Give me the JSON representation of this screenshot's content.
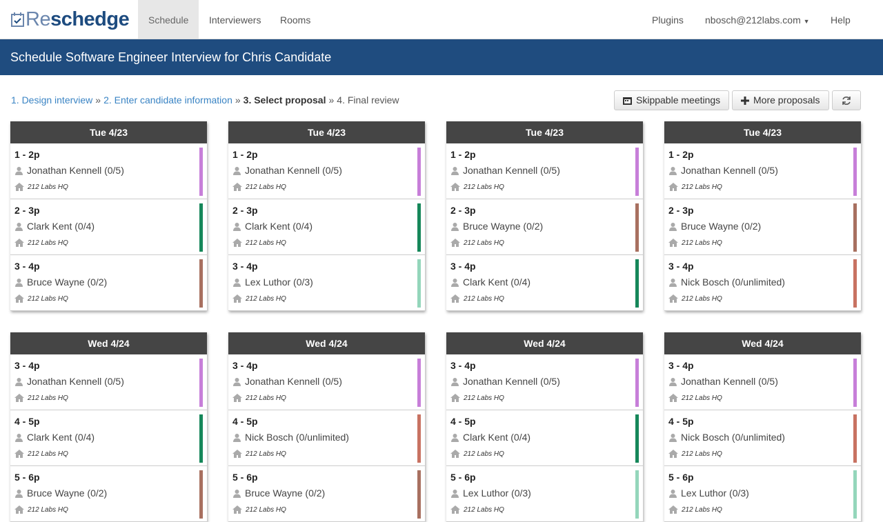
{
  "navbar": {
    "logo_parts": [
      "Re",
      "schedge"
    ],
    "left_items": [
      "Schedule",
      "Interviewers",
      "Rooms"
    ],
    "right_items": [
      "Plugins",
      "nbosch@212labs.com",
      "Help"
    ]
  },
  "header": {
    "title": "Schedule Software Engineer Interview for Chris Candidate"
  },
  "breadcrumb": {
    "separator": "»",
    "steps": [
      "1. Design interview",
      "2. Enter candidate information",
      "3. Select proposal",
      "4. Final review"
    ]
  },
  "toolbar": {
    "buttons": [
      "Skippable meetings",
      "More proposals"
    ]
  },
  "proposals": [
    {
      "date": "Tue 4/23",
      "slots": [
        {
          "time": "1 - 2p",
          "interviewer": "Jonathan Kennell (0/5)",
          "room": "212 Labs HQ",
          "color": "#c77fd9"
        },
        {
          "time": "2 - 3p",
          "interviewer": "Clark Kent (0/4)",
          "room": "212 Labs HQ",
          "color": "#16875a"
        },
        {
          "time": "3 - 4p",
          "interviewer": "Bruce Wayne (0/2)",
          "room": "212 Labs HQ",
          "color": "#a87060"
        }
      ]
    },
    {
      "date": "Tue 4/23",
      "slots": [
        {
          "time": "1 - 2p",
          "interviewer": "Jonathan Kennell (0/5)",
          "room": "212 Labs HQ",
          "color": "#c77fd9"
        },
        {
          "time": "2 - 3p",
          "interviewer": "Clark Kent (0/4)",
          "room": "212 Labs HQ",
          "color": "#16875a"
        },
        {
          "time": "3 - 4p",
          "interviewer": "Lex Luthor (0/3)",
          "room": "212 Labs HQ",
          "color": "#94d6bb"
        }
      ]
    },
    {
      "date": "Tue 4/23",
      "slots": [
        {
          "time": "1 - 2p",
          "interviewer": "Jonathan Kennell (0/5)",
          "room": "212 Labs HQ",
          "color": "#c77fd9"
        },
        {
          "time": "2 - 3p",
          "interviewer": "Bruce Wayne (0/2)",
          "room": "212 Labs HQ",
          "color": "#a87060"
        },
        {
          "time": "3 - 4p",
          "interviewer": "Clark Kent (0/4)",
          "room": "212 Labs HQ",
          "color": "#16875a"
        }
      ]
    },
    {
      "date": "Tue 4/23",
      "slots": [
        {
          "time": "1 - 2p",
          "interviewer": "Jonathan Kennell (0/5)",
          "room": "212 Labs HQ",
          "color": "#c77fd9"
        },
        {
          "time": "2 - 3p",
          "interviewer": "Bruce Wayne (0/2)",
          "room": "212 Labs HQ",
          "color": "#a87060"
        },
        {
          "time": "3 - 4p",
          "interviewer": "Nick Bosch (0/unlimited)",
          "room": "212 Labs HQ",
          "color": "#c87262"
        }
      ]
    },
    {
      "date": "Wed 4/24",
      "slots": [
        {
          "time": "3 - 4p",
          "interviewer": "Jonathan Kennell (0/5)",
          "room": "212 Labs HQ",
          "color": "#c77fd9"
        },
        {
          "time": "4 - 5p",
          "interviewer": "Clark Kent (0/4)",
          "room": "212 Labs HQ",
          "color": "#16875a"
        },
        {
          "time": "5 - 6p",
          "interviewer": "Bruce Wayne (0/2)",
          "room": "212 Labs HQ",
          "color": "#a87060"
        }
      ]
    },
    {
      "date": "Wed 4/24",
      "slots": [
        {
          "time": "3 - 4p",
          "interviewer": "Jonathan Kennell (0/5)",
          "room": "212 Labs HQ",
          "color": "#c77fd9"
        },
        {
          "time": "4 - 5p",
          "interviewer": "Nick Bosch (0/unlimited)",
          "room": "212 Labs HQ",
          "color": "#c87262"
        },
        {
          "time": "5 - 6p",
          "interviewer": "Bruce Wayne (0/2)",
          "room": "212 Labs HQ",
          "color": "#a87060"
        }
      ]
    },
    {
      "date": "Wed 4/24",
      "slots": [
        {
          "time": "3 - 4p",
          "interviewer": "Jonathan Kennell (0/5)",
          "room": "212 Labs HQ",
          "color": "#c77fd9"
        },
        {
          "time": "4 - 5p",
          "interviewer": "Clark Kent (0/4)",
          "room": "212 Labs HQ",
          "color": "#16875a"
        },
        {
          "time": "5 - 6p",
          "interviewer": "Lex Luthor (0/3)",
          "room": "212 Labs HQ",
          "color": "#94d6bb"
        }
      ]
    },
    {
      "date": "Wed 4/24",
      "slots": [
        {
          "time": "3 - 4p",
          "interviewer": "Jonathan Kennell (0/5)",
          "room": "212 Labs HQ",
          "color": "#c77fd9"
        },
        {
          "time": "4 - 5p",
          "interviewer": "Nick Bosch (0/unlimited)",
          "room": "212 Labs HQ",
          "color": "#c87262"
        },
        {
          "time": "5 - 6p",
          "interviewer": "Lex Luthor (0/3)",
          "room": "212 Labs HQ",
          "color": "#94d6bb"
        }
      ]
    }
  ]
}
